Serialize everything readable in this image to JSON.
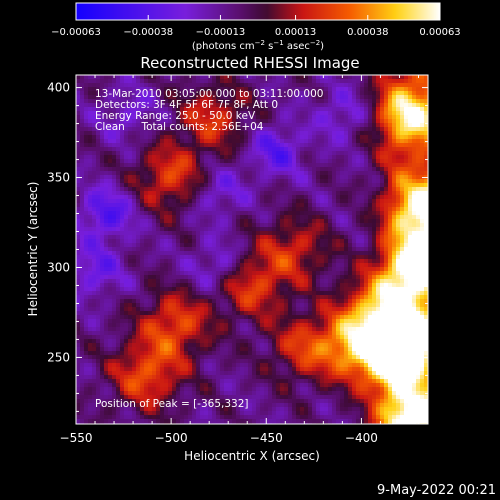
{
  "chart_data": {
    "type": "heatmap",
    "title": "Reconstructed RHESSI Image",
    "xlabel": "Heliocentric X (arcsec)",
    "ylabel": "Heliocentric Y (arcsec)",
    "xlim": [
      -550,
      -365
    ],
    "ylim": [
      213,
      407
    ],
    "x_ticks": [
      -550,
      -500,
      -450,
      -400
    ],
    "x_tick_labels": [
      "−550",
      "−500",
      "−450",
      "−400"
    ],
    "y_ticks": [
      250,
      300,
      350,
      400
    ],
    "y_tick_labels": [
      "250",
      "300",
      "350",
      "400"
    ],
    "colorbar": {
      "min": -0.00063,
      "max": 0.00063,
      "ticks": [
        -0.00063,
        -0.00038,
        -0.00013,
        0.00013,
        0.00038,
        0.00063
      ],
      "tick_labels": [
        "−0.00063",
        "−0.00038",
        "−0.00013",
        "0.00013",
        "0.00038",
        "0.00063"
      ],
      "units_prefix": "(photons cm",
      "units_sup1": "−2",
      "units_mid1": " s",
      "units_sup2": "−1",
      "units_mid2": " asec",
      "units_sup3": "−2",
      "units_suffix": ")",
      "colormap": "blue-purple-red-orange-yellow-white"
    },
    "annotations": [
      "13-Mar-2010 03:05:00.000 to 03:11:00.000",
      "Detectors: 3F 4F 5F 6F 7F 8F, Att 0",
      "Energy Range: 25.0 - 50.0 keV",
      "Clean     Total counts: 2.56E+04"
    ],
    "peak_label": "Position of Peak = [-365,332]",
    "peak_position": [
      -365,
      332
    ],
    "bright_regions": [
      {
        "x": -373,
        "y": 215,
        "value": 0.00063
      },
      {
        "x": -375,
        "y": 260,
        "value": 0.00055
      },
      {
        "x": -370,
        "y": 300,
        "value": 0.00057
      },
      {
        "x": -365,
        "y": 332,
        "value": 0.00063
      },
      {
        "x": -374,
        "y": 385,
        "value": 0.0005
      },
      {
        "x": -403,
        "y": 258,
        "value": 0.00048
      },
      {
        "x": -390,
        "y": 278,
        "value": 0.00046
      },
      {
        "x": -385,
        "y": 246,
        "value": 0.00045
      },
      {
        "x": -513,
        "y": 240,
        "value": 0.00037
      },
      {
        "x": -498,
        "y": 268,
        "value": 0.00036
      },
      {
        "x": -500,
        "y": 350,
        "value": 0.00034
      },
      {
        "x": -478,
        "y": 383,
        "value": 0.0003
      },
      {
        "x": -458,
        "y": 290,
        "value": 0.00033
      },
      {
        "x": -430,
        "y": 255,
        "value": 0.0003
      },
      {
        "x": -435,
        "y": 310,
        "value": 0.00028
      }
    ],
    "dim_regions": [
      {
        "x": -534,
        "y": 330,
        "value": -0.0003
      },
      {
        "x": -540,
        "y": 298,
        "value": -0.00022
      },
      {
        "x": -445,
        "y": 365,
        "value": -0.00026
      },
      {
        "x": -476,
        "y": 342,
        "value": -0.0002
      },
      {
        "x": -475,
        "y": 300,
        "value": -0.00022
      },
      {
        "x": -410,
        "y": 385,
        "value": -0.00018
      },
      {
        "x": -522,
        "y": 385,
        "value": -0.00015
      }
    ]
  },
  "footer": {
    "timestamp": "9-May-2022 00:21"
  }
}
